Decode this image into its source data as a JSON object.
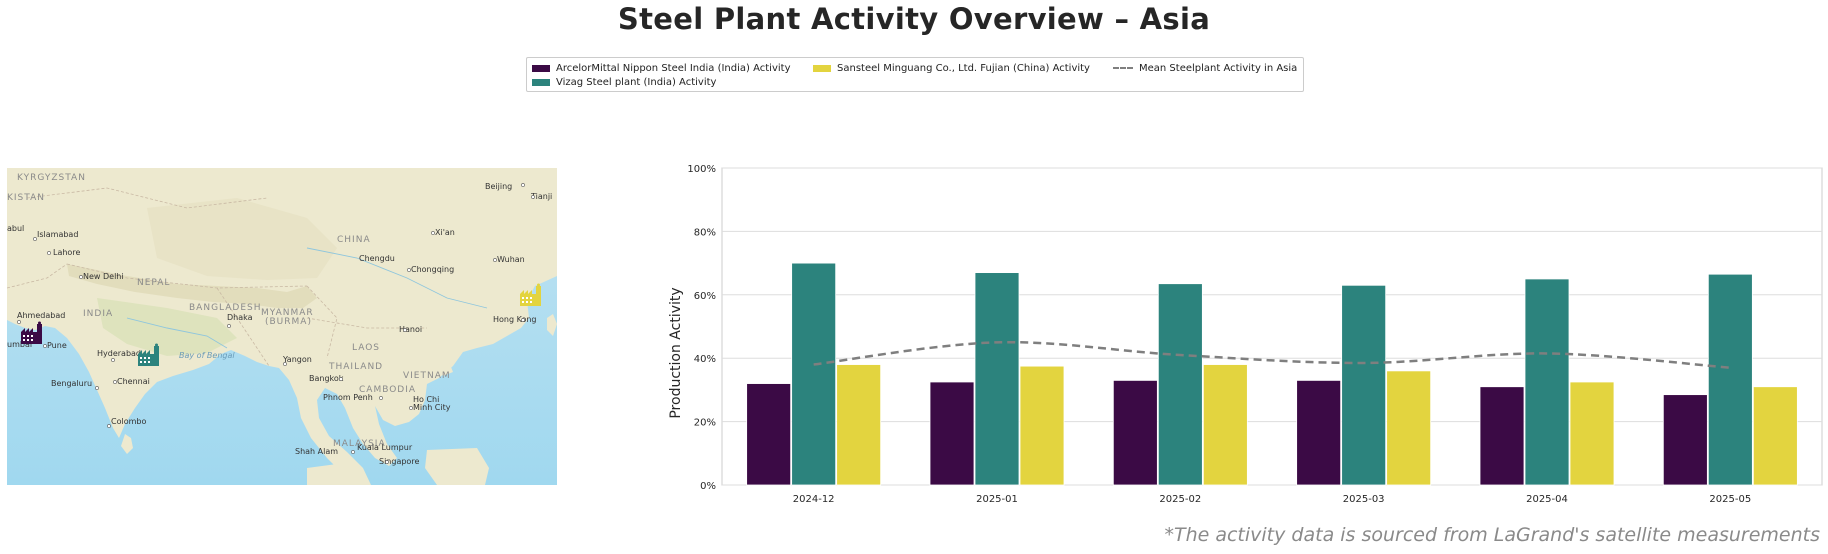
{
  "title": "Steel Plant Activity Overview – Asia",
  "footnote": "*The activity data is sourced from LaGrand's satellite measurements",
  "legend": [
    {
      "label": "ArcelorMittal Nippon Steel India (India) Activity",
      "color": "#3b0a45"
    },
    {
      "label": "Vizag Steel plant (India) Activity",
      "color": "#2c837d"
    },
    {
      "label": "Sansteel Minguang Co., Ltd. Fujian (China) Activity",
      "color": "#e3d43f"
    },
    {
      "label": "Mean Steelplant Activity in Asia",
      "color": "#7f7f7f"
    }
  ],
  "map": {
    "labels": {
      "kyrgyzstan": "KYRGYZSTAN",
      "kistan": "KISTAN",
      "abul": "abul",
      "islamabad": "Islamabad",
      "lahore": "Lahore",
      "new_delhi": "New Delhi",
      "nepal": "NEPAL",
      "india": "INDIA",
      "ahmedabad": "Ahmedabad",
      "pune": "Pune",
      "umbai": "umbai",
      "hyderabad": "Hyderabad",
      "chennai": "Chennai",
      "bengaluru": "Bengaluru",
      "colombo": "Colombo",
      "bay_of_bengal": "Bay of Bengal",
      "bangladesh": "BANGLADESH",
      "dhaka": "Dhaka",
      "myanmar": "MYANMAR",
      "burma": "(BURMA)",
      "yangon": "Yangon",
      "china": "CHINA",
      "beijing": "Beijing",
      "tianjin": "Tianji",
      "xian": "Xi'an",
      "chengdu": "Chengdu",
      "chongqing": "Chongqing",
      "wuhan": "Wuhan",
      "hong_kong": "Hong Kong",
      "hanoi": "Hanoi",
      "laos": "LAOS",
      "thailand": "THAILAND",
      "bangkok": "Bangkok",
      "vietnam": "VIETNAM",
      "cambodia": "CAMBODIA",
      "phnom_penh": "Phnom Penh",
      "ho_chi": "Ho Chi",
      "minh_city": "Minh City",
      "malaysia": "MALAYSIA",
      "shah_alam": "Shah Alam",
      "kuala_lumpur": "Kuala Lumpur",
      "singapore": "Singapore"
    },
    "markers": [
      {
        "name": "arcelormittal-marker",
        "color": "#3b0a45",
        "icon": "factory-icon"
      },
      {
        "name": "vizag-marker",
        "color": "#2c837d",
        "icon": "factory-icon"
      },
      {
        "name": "sansteel-marker",
        "color": "#e3d43f",
        "icon": "factory-icon"
      }
    ]
  },
  "chart_data": {
    "type": "bar",
    "categories": [
      "2024-12",
      "2025-01",
      "2025-02",
      "2025-03",
      "2025-04",
      "2025-05"
    ],
    "series": [
      {
        "name": "ArcelorMittal Nippon Steel India (India) Activity",
        "color": "#3b0a45",
        "values": [
          32,
          32.5,
          33,
          33,
          31,
          28.5
        ]
      },
      {
        "name": "Vizag Steel plant (India) Activity",
        "color": "#2c837d",
        "values": [
          70,
          67,
          63.5,
          63,
          65,
          66.5
        ]
      },
      {
        "name": "Sansteel Minguang Co., Ltd. Fujian (China) Activity",
        "color": "#e3d43f",
        "values": [
          38,
          37.5,
          38,
          36,
          32.5,
          31
        ]
      }
    ],
    "line": {
      "name": "Mean Steelplant Activity in Asia",
      "color": "#7f7f7f",
      "values": [
        38,
        45,
        41,
        38.5,
        41.5,
        37
      ]
    },
    "ylabel": "Production Activity",
    "xlabel": "",
    "ylim": [
      0,
      100
    ],
    "yticks": [
      "0%",
      "20%",
      "40%",
      "60%",
      "80%",
      "100%"
    ],
    "grid": "horizontal",
    "legend_placement": "top-center"
  }
}
